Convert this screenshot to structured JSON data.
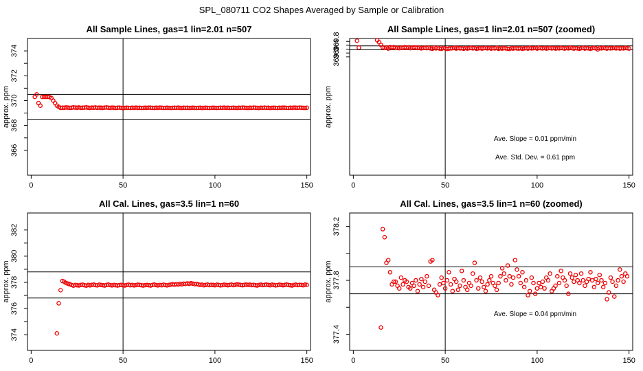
{
  "figure": {
    "title": "SPL_080711  CO2 Shapes Averaged by Sample or Calibration"
  },
  "chart_data": [
    {
      "type": "scatter",
      "title": "All Sample Lines, gas=1 lin=2.01 n=507",
      "xlabel": "",
      "ylabel": "approx. ppm",
      "xlim": [
        -2,
        152
      ],
      "ylim": [
        364,
        375
      ],
      "xticks": [
        0,
        50,
        100,
        150
      ],
      "yticks": [
        366,
        368,
        370,
        372,
        374
      ],
      "vlines": [
        50
      ],
      "hlines": [
        368.5,
        370.5
      ],
      "point_color": "#ee0000",
      "annotations": [],
      "series": [
        {
          "x_start": 2,
          "x_step": 1,
          "values": [
            370.3,
            370.5,
            369.8,
            369.6,
            370.3,
            370.3,
            370.3,
            370.3,
            370.3,
            370.2,
            370.0,
            369.8,
            369.6,
            369.5,
            369.42,
            369.43,
            369.43,
            369.45,
            369.44,
            369.42,
            369.43,
            369.46,
            369.44,
            369.43,
            369.45,
            369.42,
            369.43,
            369.44,
            369.46,
            369.43,
            369.42,
            369.44,
            369.43,
            369.45,
            369.42,
            369.44,
            369.43,
            369.42,
            369.44,
            369.45,
            369.43,
            369.42,
            369.44,
            369.43,
            369.41,
            369.43,
            369.44,
            369.42,
            369.4,
            369.42,
            369.43,
            369.42,
            369.41,
            369.43,
            369.42,
            369.44,
            369.42,
            369.43,
            369.41,
            369.42,
            369.43,
            369.42,
            369.44,
            369.43,
            369.42,
            369.41,
            369.43,
            369.42,
            369.44,
            369.43,
            369.41,
            369.42,
            369.43,
            369.42,
            369.41,
            369.42,
            369.43,
            369.42,
            369.44,
            369.42,
            369.41,
            369.43,
            369.42,
            369.43,
            369.41,
            369.42,
            369.43,
            369.42,
            369.41,
            369.42,
            369.43,
            369.41,
            369.42,
            369.43,
            369.42,
            369.41,
            369.42,
            369.43,
            369.42,
            369.41,
            369.42,
            369.43,
            369.42,
            369.44,
            369.42,
            369.43,
            369.41,
            369.42,
            369.43,
            369.42,
            369.41,
            369.43,
            369.42,
            369.44,
            369.43,
            369.42,
            369.41,
            369.43,
            369.42,
            369.44,
            369.43,
            369.42,
            369.41,
            369.43,
            369.42,
            369.44,
            369.42,
            369.43,
            369.41,
            369.42,
            369.43,
            369.42,
            369.41,
            369.43,
            369.42,
            369.44,
            369.43,
            369.42,
            369.41,
            369.43,
            369.42,
            369.44,
            369.43,
            369.42,
            369.44,
            369.43,
            369.42,
            369.41,
            369.43
          ]
        }
      ]
    },
    {
      "type": "scatter",
      "title": "All Sample Lines, gas=1 lin=2.01 n=507 (zoomed)",
      "xlabel": "",
      "ylabel": "approx. ppm",
      "xlim": [
        -2,
        152
      ],
      "ylim": [
        362.9,
        369.95
      ],
      "xticks": [
        0,
        50,
        100,
        150
      ],
      "yticks": [
        369.0,
        369.4,
        369.8
      ],
      "vlines": [
        50
      ],
      "hlines": [
        369.37,
        369.57
      ],
      "point_color": "#ee0000",
      "annotations": [
        "Ave. Slope =  0.01  ppm/min",
        "Ave. Std. Dev. =  0.61  ppm"
      ],
      "series": [
        {
          "x_start": 2,
          "x_step": 1,
          "values": [
            369.83,
            369.48,
            null,
            null,
            null,
            null,
            null,
            null,
            null,
            null,
            null,
            369.86,
            369.76,
            369.62,
            369.49,
            369.46,
            369.48,
            369.43,
            369.5,
            369.48,
            369.5,
            369.46,
            369.47,
            369.45,
            369.48,
            369.46,
            369.5,
            369.47,
            369.49,
            369.45,
            369.47,
            369.49,
            369.48,
            369.46,
            369.48,
            369.44,
            369.46,
            369.47,
            369.45,
            369.48,
            369.44,
            369.42,
            369.48,
            369.44,
            369.47,
            369.43,
            369.42,
            369.46,
            369.44,
            369.41,
            369.43,
            369.44,
            369.45,
            369.47,
            369.43,
            369.46,
            369.44,
            369.45,
            369.42,
            369.46,
            369.43,
            369.45,
            369.47,
            369.44,
            369.46,
            369.42,
            369.44,
            369.46,
            369.43,
            369.45,
            369.47,
            369.44,
            369.46,
            369.43,
            369.45,
            369.44,
            369.47,
            369.42,
            369.45,
            369.43,
            369.46,
            369.44,
            369.42,
            369.41,
            369.45,
            369.43,
            369.46,
            369.44,
            369.43,
            369.45,
            369.42,
            369.44,
            369.46,
            369.43,
            369.47,
            369.44,
            369.45,
            369.46,
            369.43,
            369.48,
            369.45,
            369.44,
            369.46,
            369.43,
            369.45,
            369.47,
            369.44,
            369.46,
            369.43,
            369.45,
            369.44,
            369.47,
            369.45,
            369.43,
            369.46,
            369.44,
            369.48,
            369.45,
            369.43,
            369.46,
            369.44,
            369.42,
            369.45,
            369.47,
            369.43,
            369.46,
            369.44,
            369.42,
            369.45,
            369.47,
            369.44,
            369.39,
            369.46,
            369.44,
            369.47,
            369.45,
            369.43,
            369.46,
            369.44,
            369.45,
            369.47,
            369.44,
            369.46,
            369.43,
            369.45,
            369.44,
            369.47,
            369.45,
            369.43
          ]
        }
      ]
    },
    {
      "type": "scatter",
      "title": "All Cal. Lines, gas=3.5 lin=1 n=60",
      "xlabel": "",
      "ylabel": "approx. ppm",
      "xlim": [
        -2,
        152
      ],
      "ylim": [
        372.8,
        383.3
      ],
      "xticks": [
        0,
        50,
        100,
        150
      ],
      "yticks": [
        374,
        376,
        378,
        380,
        382
      ],
      "vlines": [
        50
      ],
      "hlines": [
        376.8,
        378.8
      ],
      "point_color": "#ee0000",
      "annotations": [],
      "series": [
        {
          "x_start": 14,
          "x_step": 1,
          "values": [
            374.1,
            376.4,
            377.4,
            378.1,
            378.05,
            377.95,
            377.9,
            377.85,
            377.8,
            377.75,
            377.8,
            377.78,
            377.76,
            377.8,
            377.82,
            377.78,
            377.75,
            377.8,
            377.77,
            377.8,
            377.83,
            377.79,
            377.77,
            377.82,
            377.8,
            377.78,
            377.76,
            377.8,
            377.83,
            377.79,
            377.77,
            377.8,
            377.78,
            377.76,
            377.79,
            377.81,
            377.78,
            377.76,
            377.8,
            377.82,
            377.78,
            377.8,
            377.77,
            377.79,
            377.82,
            377.8,
            377.78,
            377.76,
            377.79,
            377.8,
            377.78,
            377.76,
            377.8,
            377.83,
            377.79,
            377.77,
            377.8,
            377.78,
            377.82,
            377.79,
            377.77,
            377.8,
            377.83,
            377.85,
            377.82,
            377.86,
            377.84,
            377.88,
            377.85,
            377.9,
            377.88,
            377.92,
            377.89,
            377.93,
            377.9,
            377.86,
            377.88,
            377.84,
            377.8,
            377.82,
            377.78,
            377.8,
            377.83,
            377.79,
            377.81,
            377.8,
            377.78,
            377.82,
            377.8,
            377.77,
            377.79,
            377.82,
            377.8,
            377.78,
            377.8,
            377.83,
            377.79,
            377.81,
            377.84,
            377.82,
            377.8,
            377.78,
            377.81,
            377.83,
            377.8,
            377.82,
            377.79,
            377.81,
            377.78,
            377.76,
            377.8,
            377.82,
            377.79,
            377.81,
            377.83,
            377.8,
            377.78,
            377.82,
            377.8,
            377.77,
            377.79,
            377.82,
            377.8,
            377.78,
            377.81,
            377.83,
            377.8,
            377.78,
            377.76,
            377.8,
            377.82,
            377.79,
            377.81,
            377.8,
            377.78,
            377.83,
            377.8
          ]
        }
      ]
    },
    {
      "type": "scatter",
      "title": "All Cal. Lines, gas=3.5 lin=1 n=60 (zoomed)",
      "xlabel": "",
      "ylabel": "approx. ppm",
      "xlim": [
        -2,
        152
      ],
      "ylim": [
        377.28,
        378.3
      ],
      "xticks": [
        0,
        50,
        100,
        150
      ],
      "yticks": [
        377.4,
        377.8,
        378.2
      ],
      "vlines": [
        50
      ],
      "hlines": [
        377.7,
        377.9
      ],
      "point_color": "#ee0000",
      "annotations": [
        "Ave. Slope =  0.04  ppm/min"
      ],
      "series": [
        {
          "x_start": 15,
          "x_step": 1,
          "values": [
            377.45,
            378.18,
            378.12,
            377.93,
            377.95,
            377.86,
            377.77,
            377.79,
            377.79,
            377.76,
            377.74,
            377.82,
            377.77,
            377.8,
            377.79,
            377.75,
            377.74,
            377.78,
            377.76,
            377.8,
            377.72,
            377.77,
            377.81,
            377.75,
            377.79,
            377.83,
            377.76,
            377.94,
            377.95,
            377.73,
            377.71,
            377.69,
            377.77,
            377.82,
            377.78,
            377.74,
            377.8,
            377.86,
            377.77,
            377.72,
            377.81,
            377.79,
            377.73,
            377.76,
            377.87,
            377.8,
            377.75,
            377.73,
            377.78,
            377.76,
            377.85,
            377.93,
            377.8,
            377.74,
            377.82,
            377.79,
            377.75,
            377.72,
            377.77,
            377.8,
            377.83,
            377.78,
            377.76,
            377.73,
            377.78,
            377.83,
            377.89,
            377.85,
            377.8,
            377.91,
            377.83,
            377.77,
            377.82,
            377.95,
            377.88,
            377.83,
            377.78,
            377.86,
            377.75,
            377.8,
            377.69,
            377.72,
            377.82,
            377.78,
            377.7,
            377.74,
            377.78,
            377.75,
            377.79,
            377.74,
            377.82,
            377.8,
            377.85,
            377.72,
            377.74,
            377.76,
            377.83,
            377.78,
            377.87,
            377.82,
            377.8,
            377.76,
            377.7,
            377.85,
            377.82,
            377.79,
            377.84,
            377.8,
            377.78,
            377.85,
            377.8,
            377.76,
            377.79,
            377.81,
            377.86,
            377.8,
            377.75,
            377.81,
            377.78,
            377.84,
            377.8,
            377.75,
            377.78,
            377.66,
            377.71,
            377.82,
            377.79,
            377.68,
            377.76,
            377.8,
            377.88,
            377.83,
            377.79,
            377.85,
            377.83
          ]
        }
      ]
    }
  ]
}
